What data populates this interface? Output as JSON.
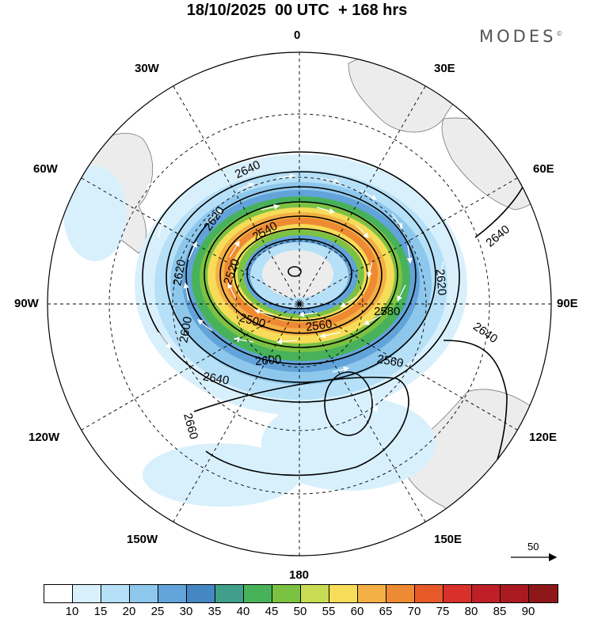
{
  "header": {
    "title": "18/10/2025  00 UTC  + 168 hrs",
    "brand": "MODES",
    "brand_mark": "©"
  },
  "longitude_labels": {
    "deg0": "0",
    "e30": "30E",
    "e60": "60E",
    "e90": "90E",
    "e120": "120E",
    "e150": "150E",
    "deg180": "180",
    "w150": "150W",
    "w120": "120W",
    "w90": "90W",
    "w60": "60W",
    "w30": "30W"
  },
  "contours": {
    "c1": "2640",
    "c2": "2620",
    "c3": "2540",
    "c4": "2520",
    "c5": "2620",
    "c6": "2640",
    "c7": "2580",
    "c8": "2560",
    "c9": "2500",
    "c10": "2640",
    "c11": "2560",
    "c12": "2600",
    "c13": "2640",
    "c14": "2660",
    "c15": "2620",
    "c16": "2600"
  },
  "vector_scale": {
    "value": "50"
  },
  "colorbar": {
    "ticks": [
      "10",
      "15",
      "20",
      "25",
      "30",
      "35",
      "40",
      "45",
      "50",
      "55",
      "60",
      "65",
      "70",
      "75",
      "80",
      "85",
      "90"
    ],
    "colors": [
      "#ffffff",
      "#d8f0fc",
      "#b6e0f7",
      "#8ec7ec",
      "#62a3d9",
      "#4487c3",
      "#3f9f8a",
      "#48b25a",
      "#7cc242",
      "#c7dc52",
      "#f6dc58",
      "#f4b045",
      "#ee8a33",
      "#e65a2a",
      "#d8302a",
      "#bf1f26",
      "#a81a1f",
      "#8e1719"
    ]
  }
}
